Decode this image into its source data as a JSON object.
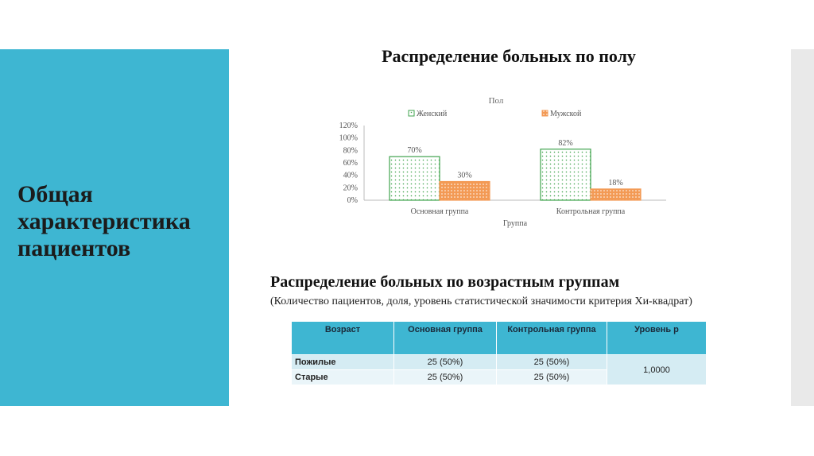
{
  "slide": {
    "left_title": "Общая характеристика пациентов",
    "chart_heading": "Распределение больных по полу",
    "age_heading": "Распределение больных по возрастным группам",
    "age_subheading": "(Количество пациентов, доля, уровень статистической значимости критерия Хи-квадрат)"
  },
  "colors": {
    "panel": "#3eb6d2",
    "female": "#3fa34d",
    "male": "#f39a55"
  },
  "chart_data": {
    "type": "bar",
    "title": "Пол",
    "xlabel": "Группа",
    "ylabel": "",
    "categories": [
      "Основная группа",
      "Контрольная группа"
    ],
    "series": [
      {
        "name": "Женский",
        "values": [
          70,
          82
        ],
        "labels": [
          "70%",
          "82%"
        ]
      },
      {
        "name": "Мужской",
        "values": [
          30,
          18
        ],
        "labels": [
          "30%",
          "18%"
        ]
      }
    ],
    "ylim": [
      0,
      120
    ],
    "yticks": [
      "0%",
      "20%",
      "40%",
      "60%",
      "80%",
      "100%",
      "120%"
    ],
    "legend": "top",
    "grid": false
  },
  "age_table": {
    "headers": [
      "Возраст",
      "Основная группа",
      "Контрольная группа",
      "Уровень p"
    ],
    "rows": [
      {
        "label": "Пожилые",
        "main": "25 (50%)",
        "control": "25 (50%)"
      },
      {
        "label": "Старые",
        "main": "25 (50%)",
        "control": "25 (50%)"
      }
    ],
    "p_value": "1,0000"
  }
}
